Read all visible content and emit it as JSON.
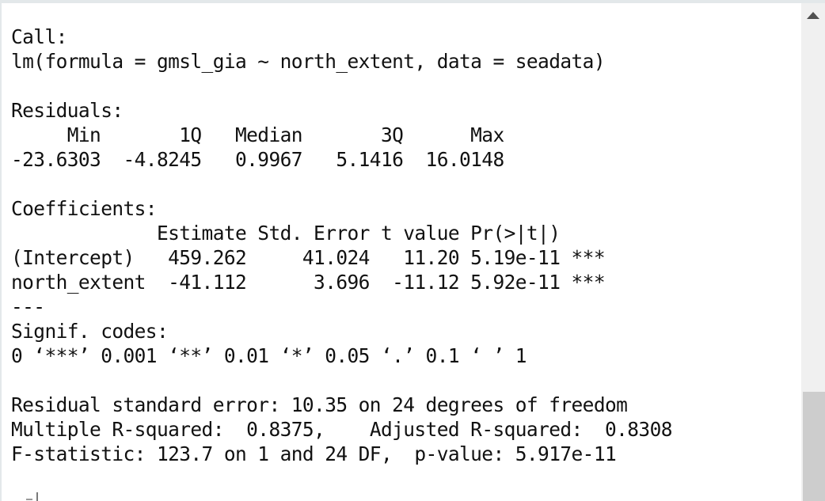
{
  "console": {
    "lines": [
      "Call:",
      "lm(formula = gmsl_gia ~ north_extent, data = seadata)",
      "",
      "Residuals:",
      "     Min       1Q   Median       3Q      Max ",
      "-23.6303  -4.8245   0.9967   5.1416  16.0148 ",
      "",
      "Coefficients:",
      "             Estimate Std. Error t value Pr(>|t|)    ",
      "(Intercept)   459.262     41.024   11.20 5.19e-11 ***",
      "north_extent  -41.112      3.696  -11.12 5.92e-11 ***",
      "---",
      "Signif. codes:  ",
      "0 ‘***’ 0.001 ‘**’ 0.01 ‘*’ 0.05 ‘.’ 0.1 ‘ ’ 1",
      "",
      "Residual standard error: 10.35 on 24 degrees of freedom",
      "Multiple R-squared:  0.8375,\tAdjusted R-squared:  0.8308 ",
      "F-statistic: 123.7 on 1 and 24 DF,  p-value: 5.917e-11"
    ]
  },
  "icons": {
    "scroll_up": "triangle-up-icon"
  }
}
